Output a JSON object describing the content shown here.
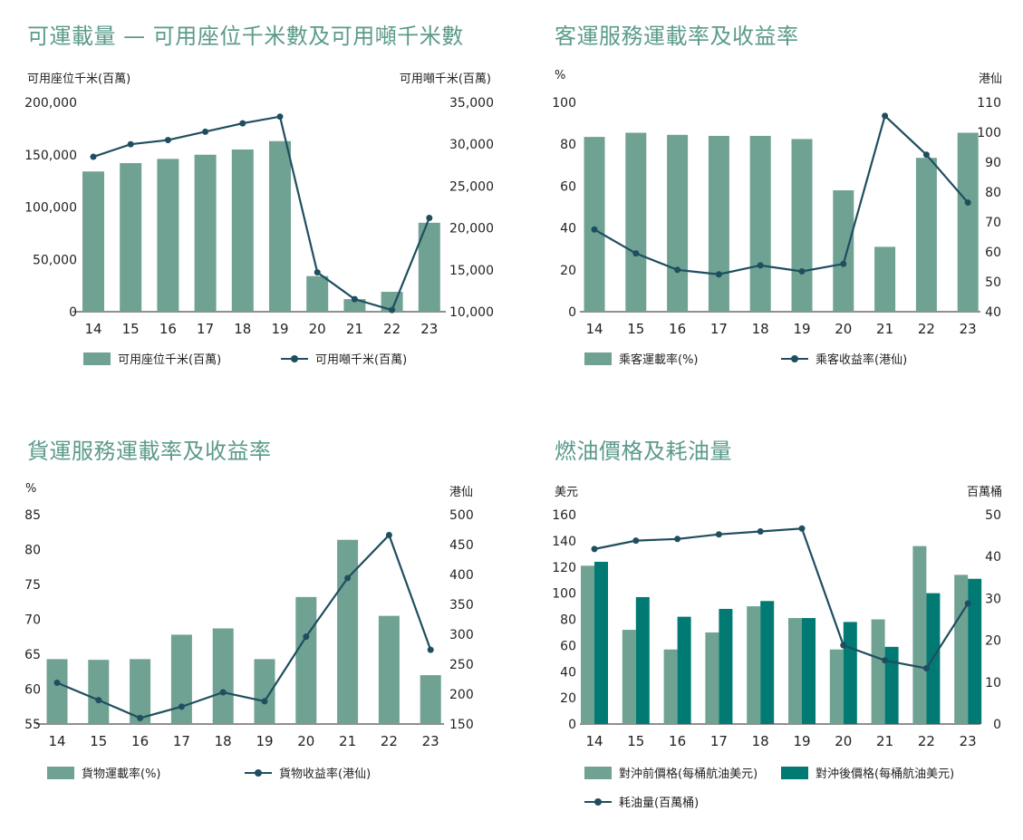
{
  "colors": {
    "bar": "#6fa293",
    "bar_dark": "#007a73",
    "line": "#1f4e5f",
    "title": "#5b9a8b"
  },
  "chart_data": [
    {
      "type": "bar+line",
      "title": "可運載量 — 可用座位千米數及可用噸千米數",
      "left_unit": "可用座位千米(百萬)",
      "right_unit": "可用噸千米(百萬)",
      "categories": [
        "14",
        "15",
        "16",
        "17",
        "18",
        "19",
        "20",
        "21",
        "22",
        "23"
      ],
      "left_ylim": [
        0,
        200000
      ],
      "left_ticks": [
        "200,000",
        "150,000",
        "100,000",
        "50,000",
        "0"
      ],
      "right_ylim": [
        10000,
        35000
      ],
      "right_ticks": [
        "35,000",
        "30,000",
        "25,000",
        "20,000",
        "15,000",
        "10,000"
      ],
      "series": [
        {
          "name": "可用座位千米(百萬)",
          "kind": "bar",
          "axis": "left",
          "values": [
            134000,
            142000,
            146000,
            150000,
            155000,
            163000,
            34000,
            12000,
            19000,
            85000
          ]
        },
        {
          "name": "可用噸千米(百萬)",
          "kind": "line",
          "axis": "right",
          "values": [
            28500,
            30000,
            30500,
            31500,
            32500,
            33300,
            14700,
            11500,
            10200,
            21200
          ]
        }
      ],
      "legend": [
        "可用座位千米(百萬)",
        "可用噸千米(百萬)"
      ]
    },
    {
      "type": "bar+line",
      "title": "客運服務運載率及收益率",
      "left_unit": "%",
      "right_unit": "港仙",
      "categories": [
        "14",
        "15",
        "16",
        "17",
        "18",
        "19",
        "20",
        "21",
        "22",
        "23"
      ],
      "left_ylim": [
        0,
        100
      ],
      "left_ticks": [
        "100",
        "80",
        "60",
        "40",
        "20",
        "0"
      ],
      "right_ylim": [
        40,
        110
      ],
      "right_ticks": [
        "110",
        "100",
        "90",
        "80",
        "70",
        "60",
        "50",
        "40"
      ],
      "series": [
        {
          "name": "乘客運載率(%)",
          "kind": "bar",
          "axis": "left",
          "values": [
            83.5,
            85.5,
            84.5,
            84,
            84,
            82.5,
            58,
            31,
            73.5,
            85.5
          ]
        },
        {
          "name": "乘客收益率(港仙)",
          "kind": "line",
          "axis": "right",
          "values": [
            67.5,
            59.5,
            54,
            52.5,
            55.5,
            53.5,
            56,
            105.5,
            92.5,
            76.5
          ]
        }
      ],
      "legend": [
        "乘客運載率(%)",
        "乘客收益率(港仙)"
      ]
    },
    {
      "type": "bar+line",
      "title": "貨運服務運載率及收益率",
      "left_unit": "%",
      "right_unit": "港仙",
      "categories": [
        "14",
        "15",
        "16",
        "17",
        "18",
        "19",
        "20",
        "21",
        "22",
        "23"
      ],
      "left_ylim": [
        55,
        85
      ],
      "left_ticks": [
        "85",
        "80",
        "75",
        "70",
        "65",
        "60",
        "55"
      ],
      "right_ylim": [
        150,
        500
      ],
      "right_ticks": [
        "500",
        "450",
        "400",
        "350",
        "300",
        "250",
        "200",
        "150"
      ],
      "series": [
        {
          "name": "貨物運載率(%)",
          "kind": "bar",
          "axis": "left",
          "values": [
            64.3,
            64.2,
            64.3,
            67.8,
            68.7,
            64.3,
            73.2,
            81.4,
            70.5,
            62
          ]
        },
        {
          "name": "貨物收益率(港仙)",
          "kind": "line",
          "axis": "right",
          "values": [
            219,
            190,
            160,
            179,
            203,
            188,
            296,
            394,
            466,
            274
          ]
        }
      ],
      "legend": [
        "貨物運載率(%)",
        "貨物收益率(港仙)"
      ]
    },
    {
      "type": "bar+line",
      "title": "燃油價格及耗油量",
      "left_unit": "美元",
      "right_unit": "百萬桶",
      "categories": [
        "14",
        "15",
        "16",
        "17",
        "18",
        "19",
        "20",
        "21",
        "22",
        "23"
      ],
      "left_ylim": [
        0,
        160
      ],
      "left_ticks": [
        "160",
        "140",
        "120",
        "100",
        "80",
        "60",
        "40",
        "20",
        "0"
      ],
      "right_ylim": [
        0,
        50
      ],
      "right_ticks": [
        "50",
        "40",
        "30",
        "20",
        "10",
        "0"
      ],
      "series": [
        {
          "name": "對沖前價格(每桶航油美元)",
          "kind": "bar",
          "axis": "left",
          "color": "bar",
          "values": [
            121,
            72,
            57,
            70,
            90,
            81,
            57,
            80,
            136,
            114
          ]
        },
        {
          "name": "對沖後價格(每桶航油美元)",
          "kind": "bar",
          "axis": "left",
          "color": "bar_dark",
          "values": [
            124,
            97,
            82,
            88,
            94,
            81,
            78,
            59,
            100,
            111
          ]
        },
        {
          "name": "耗油量(百萬桶)",
          "kind": "line",
          "axis": "right",
          "values": [
            41.8,
            43.8,
            44.2,
            45.3,
            46.0,
            46.7,
            18.8,
            15.2,
            13.3,
            28.8
          ]
        }
      ],
      "legend": [
        "對沖前價格(每桶航油美元)",
        "對沖後價格(每桶航油美元)",
        "耗油量(百萬桶)"
      ]
    }
  ]
}
